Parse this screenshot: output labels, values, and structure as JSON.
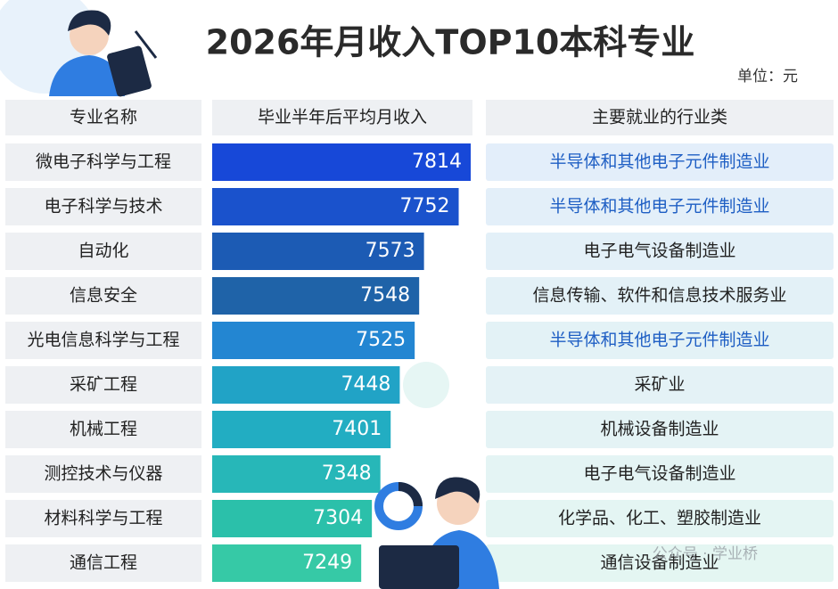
{
  "chart_data": {
    "type": "bar",
    "orientation": "horizontal",
    "title": "2026年月收入TOP10本科专业",
    "unit": "单位：元",
    "headers": [
      "专业名称",
      "毕业半年后平均月收入",
      "主要就业的行业类"
    ],
    "categories": [
      "微电子科学与工程",
      "电子科学与技术",
      "自动化",
      "信息安全",
      "光电信息科学与工程",
      "采矿工程",
      "机械工程",
      "测控技术与仪器",
      "材料科学与工程",
      "通信工程"
    ],
    "values": [
      7814,
      7752,
      7573,
      7548,
      7525,
      7448,
      7401,
      7348,
      7304,
      7249
    ],
    "colors": [
      "#1748d8",
      "#1a52cc",
      "#1c5bb4",
      "#1f63a8",
      "#2386d2",
      "#21a3c6",
      "#22adc2",
      "#27b7b8",
      "#2bc0aa",
      "#36c9a6"
    ],
    "xlim": [
      6480,
      7900
    ],
    "industries": [
      "半导体和其他电子元件制造业",
      "半导体和其他电子元件制造业",
      "电子电气设备制造业",
      "信息传输、软件和信息技术服务业",
      "半导体和其他电子元件制造业",
      "采矿业",
      "机械设备制造业",
      "电子电气设备制造业",
      "化学品、化工、塑胶制造业",
      "通信设备制造业"
    ],
    "industry_text_colors": [
      "#1f5fc4",
      "#1f5fc4",
      "#222222",
      "#222222",
      "#1f5fc4",
      "#222222",
      "#222222",
      "#222222",
      "#222222",
      "#222222"
    ],
    "watermark": "公众号 · 学业桥"
  }
}
